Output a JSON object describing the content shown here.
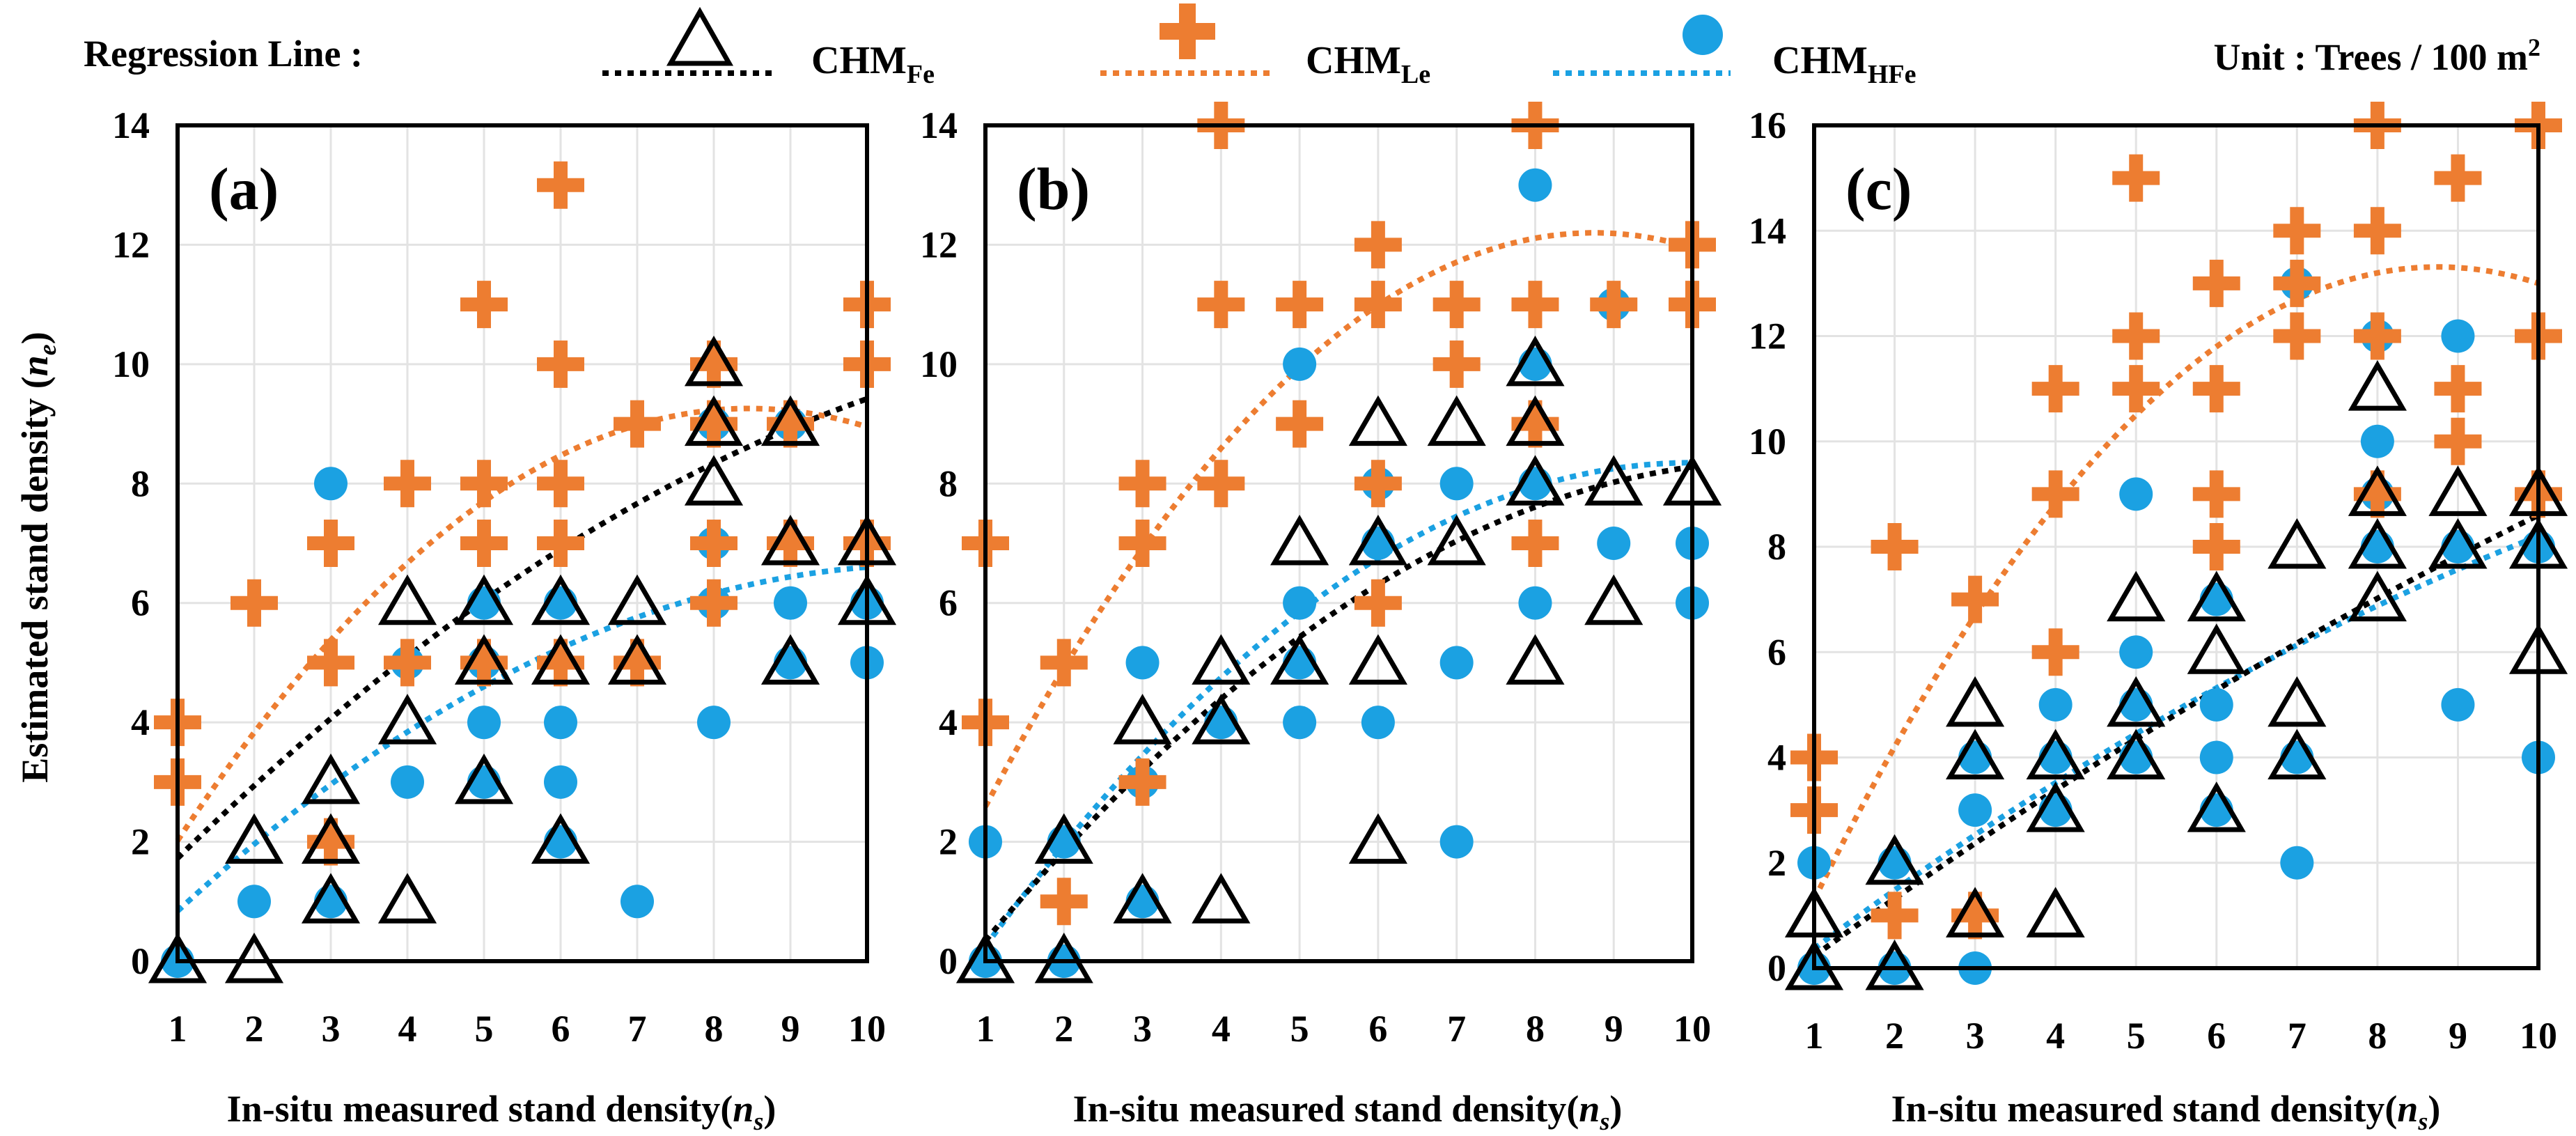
{
  "colors": {
    "fe": "#000000",
    "le": "#ED7D31",
    "hfe": "#1BA1E2"
  },
  "legend": {
    "title": "Regression Line :",
    "fe_main": "CHM",
    "fe_sub": "Fe",
    "le_main": "CHM",
    "le_sub": "Le",
    "hfe_main": "CHM",
    "hfe_sub": "HFe",
    "unit_main": "Unit : Trees / 100 m",
    "unit_sup": "2"
  },
  "axes": {
    "xlabel_main": "In-situ measured stand density",
    "xlabel_var": "n",
    "xlabel_sub": "s",
    "ylabel_main": "Estimated stand density",
    "ylabel_var": "n",
    "ylabel_sub": "e"
  },
  "chart_data": [
    {
      "type": "scatter",
      "panel": "(a)",
      "xlim": [
        1,
        10
      ],
      "ylim": [
        0,
        14
      ],
      "xticks": [
        "1",
        "2",
        "3",
        "4",
        "5",
        "6",
        "7",
        "8",
        "9",
        "10"
      ],
      "yticks": [
        "0",
        "2",
        "4",
        "6",
        "8",
        "10",
        "12",
        "14"
      ],
      "series": [
        {
          "name": "CHM_Fe",
          "marker": "triangle",
          "points": [
            [
              1,
              0
            ],
            [
              2,
              0
            ],
            [
              2,
              2
            ],
            [
              3,
              1
            ],
            [
              3,
              2
            ],
            [
              3,
              3
            ],
            [
              4,
              1
            ],
            [
              4,
              4
            ],
            [
              4,
              6
            ],
            [
              5,
              3
            ],
            [
              5,
              5
            ],
            [
              5,
              6
            ],
            [
              6,
              2
            ],
            [
              6,
              5
            ],
            [
              6,
              6
            ],
            [
              7,
              5
            ],
            [
              7,
              6
            ],
            [
              8,
              8
            ],
            [
              8,
              9
            ],
            [
              8,
              10
            ],
            [
              9,
              5
            ],
            [
              9,
              7
            ],
            [
              9,
              9
            ],
            [
              10,
              6
            ],
            [
              10,
              7
            ]
          ],
          "trend": [
            0.42,
            1.35,
            -0.045
          ]
        },
        {
          "name": "CHM_Le",
          "marker": "plus",
          "points": [
            [
              1,
              3
            ],
            [
              1,
              4
            ],
            [
              2,
              6
            ],
            [
              3,
              2
            ],
            [
              3,
              5
            ],
            [
              3,
              7
            ],
            [
              4,
              5
            ],
            [
              4,
              8
            ],
            [
              5,
              5
            ],
            [
              5,
              7
            ],
            [
              5,
              8
            ],
            [
              5,
              11
            ],
            [
              6,
              5
            ],
            [
              6,
              7
            ],
            [
              6,
              8
            ],
            [
              6,
              10
            ],
            [
              6,
              13
            ],
            [
              7,
              5
            ],
            [
              7,
              9
            ],
            [
              8,
              6
            ],
            [
              8,
              7
            ],
            [
              8,
              9
            ],
            [
              8,
              10
            ],
            [
              9,
              7
            ],
            [
              9,
              9
            ],
            [
              10,
              7
            ],
            [
              10,
              10
            ],
            [
              10,
              11
            ]
          ],
          "trend": [
            -0.05,
            2.2,
            -0.13
          ]
        },
        {
          "name": "CHM_HFe",
          "marker": "circle",
          "points": [
            [
              1,
              0
            ],
            [
              2,
              1
            ],
            [
              3,
              1
            ],
            [
              3,
              8
            ],
            [
              4,
              3
            ],
            [
              4,
              5
            ],
            [
              5,
              3
            ],
            [
              5,
              4
            ],
            [
              5,
              5
            ],
            [
              5,
              6
            ],
            [
              6,
              2
            ],
            [
              6,
              3
            ],
            [
              6,
              4
            ],
            [
              6,
              6
            ],
            [
              7,
              1
            ],
            [
              8,
              4
            ],
            [
              8,
              6
            ],
            [
              8,
              7
            ],
            [
              8,
              9
            ],
            [
              9,
              5
            ],
            [
              9,
              6
            ],
            [
              9,
              9
            ],
            [
              10,
              5
            ],
            [
              10,
              6
            ]
          ],
          "trend": [
            -0.4,
            1.3,
            -0.06
          ]
        }
      ]
    },
    {
      "type": "scatter",
      "panel": "(b)",
      "xlim": [
        1,
        10
      ],
      "ylim": [
        0,
        14
      ],
      "xticks": [
        "1",
        "2",
        "3",
        "4",
        "5",
        "6",
        "7",
        "8",
        "9",
        "10"
      ],
      "yticks": [
        "0",
        "2",
        "4",
        "6",
        "8",
        "10",
        "12",
        "14"
      ],
      "series": [
        {
          "name": "CHM_Fe",
          "marker": "triangle",
          "points": [
            [
              1,
              0
            ],
            [
              2,
              0
            ],
            [
              2,
              2
            ],
            [
              3,
              1
            ],
            [
              3,
              4
            ],
            [
              4,
              1
            ],
            [
              4,
              4
            ],
            [
              4,
              5
            ],
            [
              5,
              5
            ],
            [
              5,
              7
            ],
            [
              6,
              2
            ],
            [
              6,
              5
            ],
            [
              6,
              7
            ],
            [
              6,
              9
            ],
            [
              7,
              7
            ],
            [
              7,
              9
            ],
            [
              8,
              5
            ],
            [
              8,
              8
            ],
            [
              8,
              9
            ],
            [
              8,
              10
            ],
            [
              9,
              6
            ],
            [
              9,
              8
            ],
            [
              10,
              8
            ]
          ],
          "trend": [
            -1.32,
            1.74,
            -0.078
          ]
        },
        {
          "name": "CHM_Le",
          "marker": "plus",
          "points": [
            [
              1,
              4
            ],
            [
              1,
              7
            ],
            [
              2,
              1
            ],
            [
              2,
              5
            ],
            [
              3,
              3
            ],
            [
              3,
              7
            ],
            [
              3,
              8
            ],
            [
              4,
              8
            ],
            [
              4,
              11
            ],
            [
              4,
              14
            ],
            [
              5,
              9
            ],
            [
              5,
              11
            ],
            [
              6,
              6
            ],
            [
              6,
              8
            ],
            [
              6,
              11
            ],
            [
              6,
              12
            ],
            [
              7,
              10
            ],
            [
              7,
              11
            ],
            [
              8,
              7
            ],
            [
              8,
              9
            ],
            [
              8,
              11
            ],
            [
              8,
              14
            ],
            [
              9,
              11
            ],
            [
              10,
              11
            ],
            [
              10,
              12
            ]
          ],
          "trend": [
            -0.05,
            2.8,
            -0.16
          ]
        },
        {
          "name": "CHM_HFe",
          "marker": "circle",
          "points": [
            [
              1,
              0
            ],
            [
              1,
              2
            ],
            [
              2,
              0
            ],
            [
              2,
              2
            ],
            [
              3,
              1
            ],
            [
              3,
              3
            ],
            [
              3,
              5
            ],
            [
              4,
              4
            ],
            [
              5,
              4
            ],
            [
              5,
              5
            ],
            [
              5,
              6
            ],
            [
              5,
              10
            ],
            [
              6,
              4
            ],
            [
              6,
              7
            ],
            [
              6,
              8
            ],
            [
              7,
              2
            ],
            [
              7,
              5
            ],
            [
              7,
              8
            ],
            [
              8,
              6
            ],
            [
              8,
              8
            ],
            [
              8,
              10
            ],
            [
              8,
              13
            ],
            [
              9,
              7
            ],
            [
              9,
              11
            ],
            [
              10,
              6
            ],
            [
              10,
              7
            ]
          ],
          "trend": [
            -1.65,
            2.0,
            -0.1
          ]
        }
      ]
    },
    {
      "type": "scatter",
      "panel": "(c)",
      "xlim": [
        1,
        10
      ],
      "ylim": [
        0,
        16
      ],
      "xticks": [
        "1",
        "2",
        "3",
        "4",
        "5",
        "6",
        "7",
        "8",
        "9",
        "10"
      ],
      "yticks": [
        "0",
        "2",
        "4",
        "6",
        "8",
        "10",
        "12",
        "14",
        "16"
      ],
      "series": [
        {
          "name": "CHM_Fe",
          "marker": "triangle",
          "points": [
            [
              1,
              0
            ],
            [
              1,
              1
            ],
            [
              2,
              0
            ],
            [
              2,
              2
            ],
            [
              3,
              1
            ],
            [
              3,
              4
            ],
            [
              3,
              5
            ],
            [
              4,
              1
            ],
            [
              4,
              3
            ],
            [
              4,
              4
            ],
            [
              5,
              4
            ],
            [
              5,
              5
            ],
            [
              5,
              7
            ],
            [
              6,
              3
            ],
            [
              6,
              6
            ],
            [
              6,
              7
            ],
            [
              7,
              4
            ],
            [
              7,
              5
            ],
            [
              7,
              8
            ],
            [
              8,
              7
            ],
            [
              8,
              8
            ],
            [
              8,
              9
            ],
            [
              8,
              11
            ],
            [
              9,
              8
            ],
            [
              9,
              9
            ],
            [
              10,
              6
            ],
            [
              10,
              8
            ],
            [
              10,
              9
            ]
          ],
          "trend": [
            -0.9,
            1.15,
            -0.02
          ]
        },
        {
          "name": "CHM_Le",
          "marker": "plus",
          "points": [
            [
              1,
              3
            ],
            [
              1,
              4
            ],
            [
              2,
              1
            ],
            [
              2,
              8
            ],
            [
              3,
              1
            ],
            [
              3,
              7
            ],
            [
              4,
              6
            ],
            [
              4,
              9
            ],
            [
              4,
              11
            ],
            [
              5,
              11
            ],
            [
              5,
              12
            ],
            [
              5,
              15
            ],
            [
              6,
              8
            ],
            [
              6,
              9
            ],
            [
              6,
              11
            ],
            [
              6,
              13
            ],
            [
              7,
              12
            ],
            [
              7,
              13
            ],
            [
              7,
              14
            ],
            [
              8,
              9
            ],
            [
              8,
              12
            ],
            [
              8,
              14
            ],
            [
              8,
              16
            ],
            [
              9,
              10
            ],
            [
              9,
              11
            ],
            [
              9,
              15
            ],
            [
              10,
              9
            ],
            [
              10,
              12
            ],
            [
              10,
              16
            ]
          ],
          "trend": [
            -2.0,
            3.5,
            -0.2
          ]
        },
        {
          "name": "CHM_HFe",
          "marker": "circle",
          "points": [
            [
              1,
              0
            ],
            [
              1,
              2
            ],
            [
              2,
              0
            ],
            [
              2,
              2
            ],
            [
              3,
              0
            ],
            [
              3,
              3
            ],
            [
              3,
              4
            ],
            [
              4,
              3
            ],
            [
              4,
              4
            ],
            [
              4,
              5
            ],
            [
              5,
              4
            ],
            [
              5,
              5
            ],
            [
              5,
              6
            ],
            [
              5,
              9
            ],
            [
              6,
              3
            ],
            [
              6,
              4
            ],
            [
              6,
              5
            ],
            [
              6,
              7
            ],
            [
              7,
              2
            ],
            [
              7,
              4
            ],
            [
              7,
              13
            ],
            [
              8,
              8
            ],
            [
              8,
              9
            ],
            [
              8,
              10
            ],
            [
              8,
              12
            ],
            [
              9,
              5
            ],
            [
              9,
              8
            ],
            [
              9,
              12
            ],
            [
              10,
              4
            ],
            [
              10,
              8
            ]
          ],
          "trend": [
            -0.8,
            1.2,
            -0.03
          ]
        }
      ]
    }
  ]
}
